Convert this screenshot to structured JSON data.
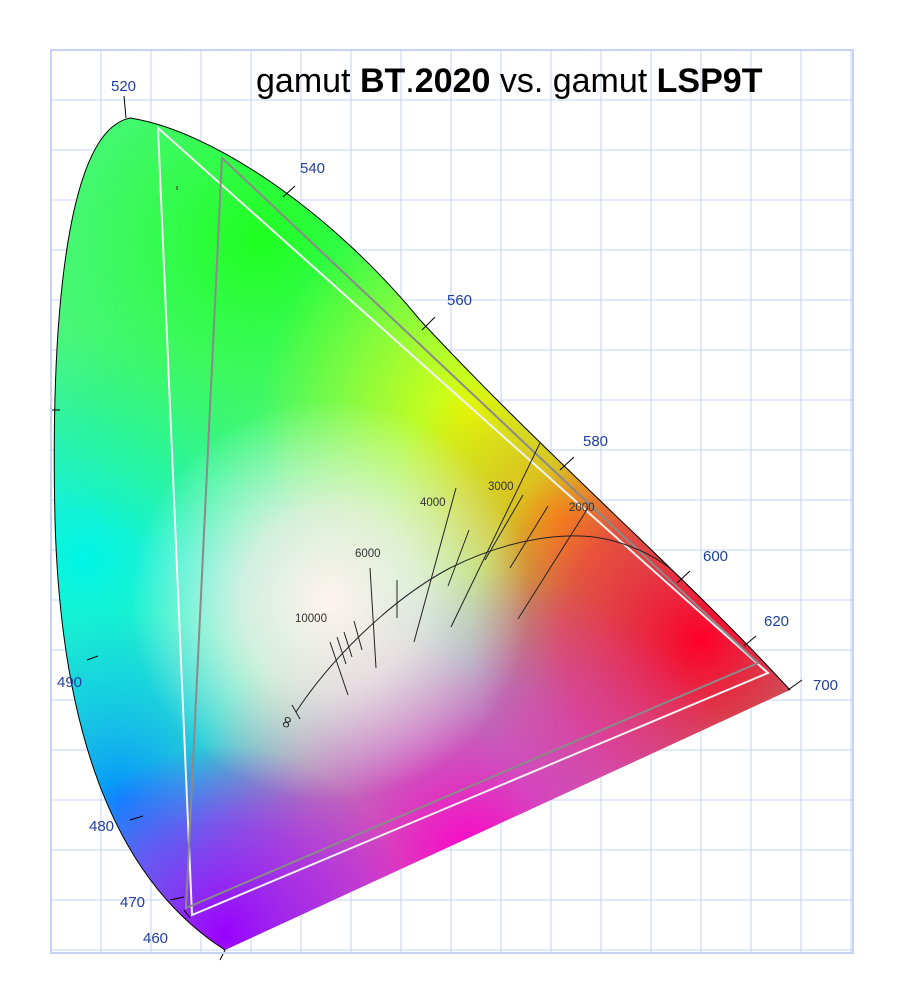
{
  "title": {
    "prefix_1": "gamut ",
    "bold_1": "BT",
    "dot": ".",
    "bold_2": "2020",
    "middle": " vs. gamut ",
    "bold_3": "LSP9T"
  },
  "wavelength_labels": [
    "520",
    "540",
    "560",
    "580",
    "600",
    "620",
    "700",
    "490",
    "480",
    "470",
    "460"
  ],
  "cct_labels": [
    "10000",
    "6000",
    "4000",
    "3000",
    "2000"
  ],
  "infinity_label": "∞",
  "colors": {
    "grid": "#c6d3f5",
    "frame": "#c6d3f5",
    "label_blue": "#1f3fa0",
    "bt2020_outline": "#f2f2f2",
    "lsp9t_outline": "#8a8a8a",
    "locus_outline": "#000000"
  }
}
